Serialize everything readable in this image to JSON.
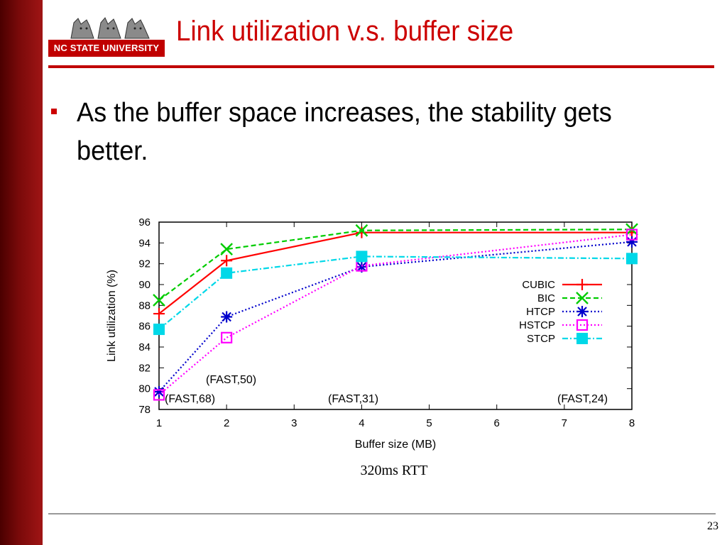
{
  "logo": {
    "text": "NC STATE UNIVERSITY"
  },
  "slide": {
    "title": "Link utilization v.s. buffer size",
    "bullet": "As the buffer space increases, the stability gets better.",
    "caption": "320ms RTT",
    "page_number": "23"
  },
  "colors": {
    "accent": "#cc0000",
    "sidebar": "#7a0a0a"
  },
  "chart_data": {
    "type": "line",
    "xlabel": "Buffer size (MB)",
    "ylabel": "Link utilization (%)",
    "x_ticks": [
      "1",
      "2",
      "3",
      "4",
      "5",
      "6",
      "7",
      "8"
    ],
    "y_ticks": [
      78,
      80,
      82,
      84,
      86,
      88,
      90,
      92,
      94,
      96
    ],
    "ylim": [
      78,
      96
    ],
    "grid": false,
    "legend_position": "right",
    "x": [
      1,
      2,
      4,
      8
    ],
    "series": [
      {
        "name": "CUBIC",
        "values": [
          87.2,
          92.3,
          95.0,
          95.0
        ],
        "color": "#ff0000",
        "dash": "solid",
        "marker": "plus"
      },
      {
        "name": "BIC",
        "values": [
          88.5,
          93.4,
          95.2,
          95.3
        ],
        "color": "#00cc00",
        "dash": "dashed",
        "marker": "x"
      },
      {
        "name": "HTCP",
        "values": [
          79.7,
          86.9,
          91.7,
          94.1
        ],
        "color": "#0000cc",
        "dash": "dotted",
        "marker": "star"
      },
      {
        "name": "HSTCP",
        "values": [
          79.4,
          84.9,
          91.8,
          94.8
        ],
        "color": "#ff00ff",
        "dash": "dotted",
        "marker": "square-open"
      },
      {
        "name": "STCP",
        "values": [
          85.7,
          91.1,
          92.7,
          92.5
        ],
        "color": "#00d8e8",
        "dash": "dashdot",
        "marker": "square-filled"
      }
    ],
    "annotations": [
      "(FAST,50)",
      "(FAST,68)",
      "(FAST,31)",
      "(FAST,24)"
    ]
  }
}
